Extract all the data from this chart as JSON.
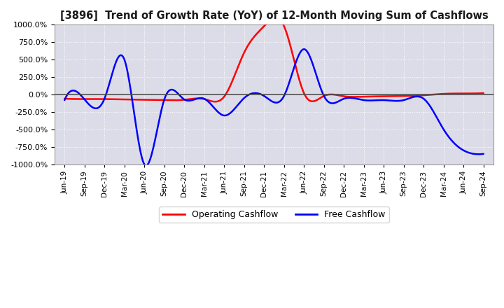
{
  "title": "[3896]  Trend of Growth Rate (YoY) of 12-Month Moving Sum of Cashflows",
  "operating_color": "#ff0000",
  "free_color": "#0000ff",
  "plot_bg": "#dcdce8",
  "grid_color": "#ffffff",
  "ylim": [
    -1000,
    1000
  ],
  "ytick_vals": [
    -1000,
    -750,
    -500,
    -250,
    0,
    250,
    500,
    750,
    1000
  ],
  "x_labels": [
    "Jun-19",
    "Sep-19",
    "Dec-19",
    "Mar-20",
    "Jun-20",
    "Sep-20",
    "Dec-20",
    "Mar-21",
    "Jun-21",
    "Sep-21",
    "Dec-21",
    "Mar-22",
    "Jun-22",
    "Sep-22",
    "Dec-22",
    "Mar-23",
    "Jun-23",
    "Sep-23",
    "Dec-23",
    "Mar-24",
    "Jun-24",
    "Sep-24"
  ],
  "op_knots_x": [
    0,
    1,
    2,
    3,
    4,
    5,
    6,
    7,
    8,
    9,
    10,
    11,
    12,
    13,
    14,
    15,
    16,
    17,
    18,
    19,
    20,
    21
  ],
  "op_knots_y": [
    -60,
    -65,
    -65,
    -70,
    -75,
    -80,
    -75,
    -65,
    -30,
    600,
    980,
    980,
    20,
    -20,
    -25,
    -30,
    -25,
    -20,
    -10,
    10,
    15,
    20
  ],
  "free_knots_x": [
    0,
    1,
    2,
    3,
    4,
    5,
    6,
    7,
    8,
    9,
    10,
    11,
    12,
    13,
    14,
    15,
    16,
    17,
    18,
    19,
    20,
    21
  ],
  "free_knots_y": [
    -80,
    -70,
    -60,
    500,
    -1000,
    -70,
    -70,
    -60,
    -300,
    -50,
    -20,
    -20,
    650,
    -20,
    -60,
    -80,
    -80,
    -80,
    -60,
    -500,
    -800,
    -850
  ]
}
